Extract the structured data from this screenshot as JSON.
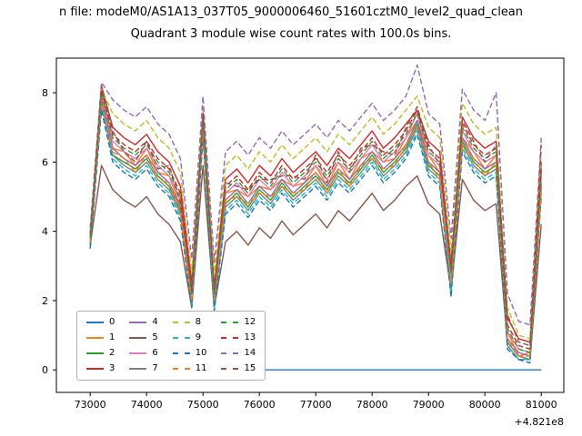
{
  "figure": {
    "title_line1": "n file: modeM0/AS1A13_037T05_9000006460_51601cztM0_level2_quad_clean",
    "title_line2": "Quadrant 3 module wise count rates with 100.0s bins."
  },
  "chart_data": {
    "type": "line",
    "title": "Quadrant 3 module wise count rates with 100.0s bins.",
    "xlabel": "",
    "ylabel": "",
    "x_offset_label": "+4.821e8",
    "xlim": [
      72400,
      81400
    ],
    "ylim": [
      -0.65,
      9.0
    ],
    "x_ticks": [
      73000,
      74000,
      75000,
      76000,
      77000,
      78000,
      79000,
      80000,
      81000
    ],
    "y_ticks": [
      0,
      2,
      4,
      6,
      8
    ],
    "grid": false,
    "legend_position": "lower left",
    "x": [
      73000,
      73200,
      73400,
      73600,
      73800,
      74000,
      74200,
      74400,
      74600,
      74800,
      75000,
      75200,
      75400,
      75600,
      75800,
      76000,
      76200,
      76400,
      76600,
      76800,
      77000,
      77200,
      77400,
      77600,
      77800,
      78000,
      78200,
      78400,
      78600,
      78800,
      79000,
      79200,
      79400,
      79600,
      79800,
      80000,
      80200,
      80400,
      80600,
      80800,
      81000
    ],
    "series": [
      {
        "name": "0",
        "color": "#1f77b4",
        "dash": false,
        "values": [
          0,
          0,
          0,
          0,
          0,
          0,
          0,
          0,
          0,
          0,
          0,
          0,
          0,
          0,
          0,
          0,
          0,
          0,
          0,
          0,
          0,
          0,
          0,
          0,
          0,
          0,
          0,
          0,
          0,
          0,
          0,
          0,
          0,
          0,
          0,
          0,
          0,
          0,
          0,
          0,
          0
        ]
      },
      {
        "name": "1",
        "color": "#ff7f0e",
        "dash": false,
        "values": [
          3.7,
          8.1,
          6.4,
          6.3,
          5.9,
          6.4,
          5.7,
          5.6,
          4.7,
          2.1,
          7.1,
          2.1,
          5.1,
          5.2,
          5.0,
          5.3,
          5.2,
          5.5,
          5.3,
          5.4,
          5.9,
          5.3,
          6.0,
          5.5,
          6.1,
          6.3,
          6.0,
          6.1,
          6.7,
          7.2,
          6.2,
          5.7,
          2.7,
          6.7,
          6.3,
          5.8,
          6.2,
          1.1,
          0.4,
          0.5,
          5.4
        ]
      },
      {
        "name": "2",
        "color": "#2ca02c",
        "dash": false,
        "values": [
          3.6,
          7.8,
          6.2,
          6.0,
          5.8,
          6.1,
          5.6,
          5.3,
          4.6,
          1.9,
          7.0,
          1.9,
          4.8,
          5.1,
          4.7,
          5.2,
          4.9,
          5.4,
          5.0,
          5.3,
          5.6,
          5.2,
          5.7,
          5.4,
          5.8,
          6.2,
          5.7,
          6.0,
          6.4,
          7.1,
          5.9,
          5.6,
          2.4,
          6.6,
          6.0,
          5.7,
          5.9,
          0.8,
          0.4,
          0.3,
          5.3
        ]
      },
      {
        "name": "3",
        "color": "#d62728",
        "dash": false,
        "values": [
          3.9,
          8.2,
          7.0,
          6.7,
          6.5,
          6.8,
          6.3,
          6.0,
          5.3,
          2.5,
          7.4,
          2.4,
          5.5,
          5.8,
          5.4,
          5.9,
          5.6,
          6.1,
          5.7,
          6.0,
          6.3,
          5.9,
          6.4,
          6.1,
          6.5,
          6.9,
          6.4,
          6.7,
          7.1,
          7.5,
          6.6,
          6.3,
          3.0,
          7.3,
          6.7,
          6.4,
          6.6,
          1.5,
          0.9,
          0.8,
          6.0
        ]
      },
      {
        "name": "4",
        "color": "#9467bd",
        "dash": false,
        "values": [
          3.7,
          7.9,
          6.4,
          6.1,
          5.9,
          6.2,
          5.7,
          5.4,
          4.7,
          2.0,
          7.1,
          1.9,
          4.9,
          5.2,
          4.8,
          5.3,
          5.0,
          5.5,
          5.1,
          5.4,
          5.7,
          5.3,
          5.8,
          5.5,
          5.9,
          6.3,
          5.8,
          6.1,
          6.5,
          7.2,
          6.0,
          5.7,
          2.5,
          6.7,
          6.1,
          5.8,
          6.0,
          0.9,
          0.5,
          0.4,
          5.4
        ]
      },
      {
        "name": "5",
        "color": "#8c564b",
        "dash": false,
        "values": [
          3.6,
          5.9,
          5.2,
          4.9,
          4.7,
          5.0,
          4.5,
          4.2,
          3.7,
          1.8,
          5.9,
          1.8,
          3.7,
          4.0,
          3.6,
          4.1,
          3.8,
          4.3,
          3.9,
          4.2,
          4.5,
          4.1,
          4.6,
          4.3,
          4.7,
          5.1,
          4.6,
          4.9,
          5.3,
          5.6,
          4.8,
          4.5,
          2.3,
          5.5,
          4.9,
          4.6,
          4.8,
          0.7,
          0.3,
          0.3,
          4.2
        ]
      },
      {
        "name": "6",
        "color": "#e377c2",
        "dash": false,
        "values": [
          3.8,
          8.0,
          6.6,
          6.3,
          6.1,
          6.4,
          5.9,
          5.6,
          4.9,
          2.1,
          7.3,
          2.1,
          5.1,
          5.4,
          5.0,
          5.5,
          5.2,
          5.7,
          5.3,
          5.6,
          5.9,
          5.5,
          6.0,
          5.7,
          6.1,
          6.5,
          6.0,
          6.3,
          6.7,
          7.4,
          6.2,
          5.9,
          2.7,
          6.9,
          6.3,
          6.0,
          6.2,
          1.1,
          0.6,
          0.5,
          5.6
        ]
      },
      {
        "name": "7",
        "color": "#7f7f7f",
        "dash": false,
        "values": [
          3.6,
          7.7,
          6.2,
          5.9,
          5.7,
          6.0,
          5.5,
          5.2,
          4.5,
          1.9,
          6.9,
          1.8,
          4.7,
          5.0,
          4.6,
          5.1,
          4.8,
          5.3,
          4.9,
          5.2,
          5.5,
          5.1,
          5.6,
          5.3,
          5.7,
          6.1,
          5.6,
          5.9,
          6.3,
          7.0,
          5.8,
          5.5,
          2.3,
          6.5,
          5.9,
          5.6,
          5.8,
          0.8,
          0.4,
          0.3,
          5.2
        ]
      },
      {
        "name": "8",
        "color": "#bcbd22",
        "dash": true,
        "values": [
          4.0,
          8.1,
          7.4,
          7.1,
          6.9,
          7.2,
          6.7,
          6.4,
          5.7,
          2.8,
          7.6,
          2.7,
          5.9,
          6.2,
          5.8,
          6.3,
          6.0,
          6.5,
          6.1,
          6.4,
          6.7,
          6.3,
          6.8,
          6.5,
          6.9,
          7.3,
          6.8,
          7.1,
          7.5,
          7.9,
          7.0,
          6.7,
          3.4,
          7.7,
          7.1,
          6.8,
          7.0,
          1.8,
          1.0,
          0.9,
          6.3
        ]
      },
      {
        "name": "9",
        "color": "#17becf",
        "dash": true,
        "values": [
          3.5,
          7.6,
          6.1,
          5.8,
          5.6,
          5.9,
          5.4,
          5.1,
          4.4,
          1.8,
          6.8,
          1.8,
          4.6,
          4.9,
          4.5,
          5.0,
          4.7,
          5.2,
          4.8,
          5.1,
          5.4,
          5.0,
          5.5,
          5.2,
          5.6,
          6.0,
          5.5,
          5.8,
          6.2,
          6.9,
          5.7,
          5.4,
          2.2,
          6.4,
          5.8,
          5.5,
          5.7,
          0.7,
          0.3,
          0.3,
          5.1
        ]
      },
      {
        "name": "10",
        "color": "#1f77b4",
        "dash": true,
        "values": [
          3.5,
          7.5,
          6.0,
          5.7,
          5.5,
          5.8,
          5.3,
          5.0,
          4.3,
          1.8,
          6.7,
          1.7,
          4.5,
          4.8,
          4.4,
          4.9,
          4.6,
          5.1,
          4.7,
          5.0,
          5.3,
          4.9,
          5.4,
          5.1,
          5.5,
          5.9,
          5.4,
          5.7,
          6.1,
          6.8,
          5.6,
          5.3,
          2.1,
          6.3,
          5.7,
          5.4,
          5.6,
          0.6,
          0.3,
          0.2,
          5.0
        ]
      },
      {
        "name": "11",
        "color": "#ff7f0e",
        "dash": true,
        "values": [
          3.7,
          7.8,
          6.3,
          6.1,
          5.7,
          6.2,
          5.5,
          5.4,
          4.5,
          2.0,
          7.0,
          2.0,
          4.9,
          5.0,
          4.8,
          5.1,
          5.0,
          5.3,
          5.1,
          5.2,
          5.7,
          5.1,
          5.8,
          5.3,
          5.9,
          6.1,
          5.8,
          5.9,
          6.5,
          7.0,
          6.0,
          5.5,
          2.5,
          6.5,
          6.1,
          5.6,
          6.0,
          0.9,
          0.4,
          0.4,
          5.2
        ]
      },
      {
        "name": "12",
        "color": "#2ca02c",
        "dash": true,
        "values": [
          3.8,
          8.0,
          6.7,
          6.4,
          6.2,
          6.5,
          6.0,
          5.7,
          5.0,
          2.2,
          7.3,
          2.2,
          5.2,
          5.5,
          5.1,
          5.6,
          5.3,
          5.8,
          5.4,
          5.7,
          6.0,
          5.6,
          6.1,
          5.8,
          6.2,
          6.6,
          6.1,
          6.4,
          6.8,
          7.4,
          6.3,
          6.0,
          2.8,
          7.0,
          6.4,
          6.1,
          6.3,
          1.2,
          0.6,
          0.5,
          5.7
        ]
      },
      {
        "name": "13",
        "color": "#d62728",
        "dash": true,
        "values": [
          3.9,
          8.1,
          6.8,
          6.5,
          6.3,
          6.6,
          6.1,
          5.8,
          5.1,
          2.3,
          7.4,
          2.3,
          5.3,
          5.6,
          5.2,
          5.7,
          5.4,
          5.9,
          5.5,
          5.8,
          6.1,
          5.7,
          6.2,
          5.9,
          6.3,
          6.7,
          6.2,
          6.5,
          6.9,
          7.5,
          6.4,
          6.1,
          2.9,
          7.1,
          6.5,
          6.2,
          6.4,
          1.3,
          0.7,
          0.6,
          5.8
        ]
      },
      {
        "name": "14",
        "color": "#9467bd",
        "dash": true,
        "values": [
          4.1,
          8.3,
          7.8,
          7.5,
          7.3,
          7.6,
          7.1,
          6.8,
          6.1,
          3.2,
          7.9,
          3.1,
          6.3,
          6.6,
          6.2,
          6.7,
          6.4,
          6.9,
          6.5,
          6.8,
          7.1,
          6.7,
          7.2,
          6.9,
          7.3,
          7.7,
          7.2,
          7.5,
          7.9,
          8.8,
          7.4,
          7.1,
          3.8,
          8.1,
          7.5,
          7.2,
          8.0,
          2.2,
          1.4,
          1.3,
          6.7
        ]
      },
      {
        "name": "15",
        "color": "#8c564b",
        "dash": true,
        "values": [
          3.9,
          8.2,
          6.9,
          6.3,
          6.0,
          6.6,
          5.8,
          5.9,
          4.8,
          2.4,
          7.3,
          2.2,
          5.4,
          5.3,
          5.2,
          5.5,
          5.5,
          5.6,
          5.6,
          5.5,
          6.2,
          5.4,
          6.3,
          5.7,
          6.4,
          6.5,
          6.3,
          6.2,
          7.0,
          7.6,
          6.5,
          5.9,
          3.1,
          7.2,
          6.6,
          6.0,
          6.5,
          1.6,
          0.8,
          0.7,
          6.5
        ]
      }
    ]
  }
}
